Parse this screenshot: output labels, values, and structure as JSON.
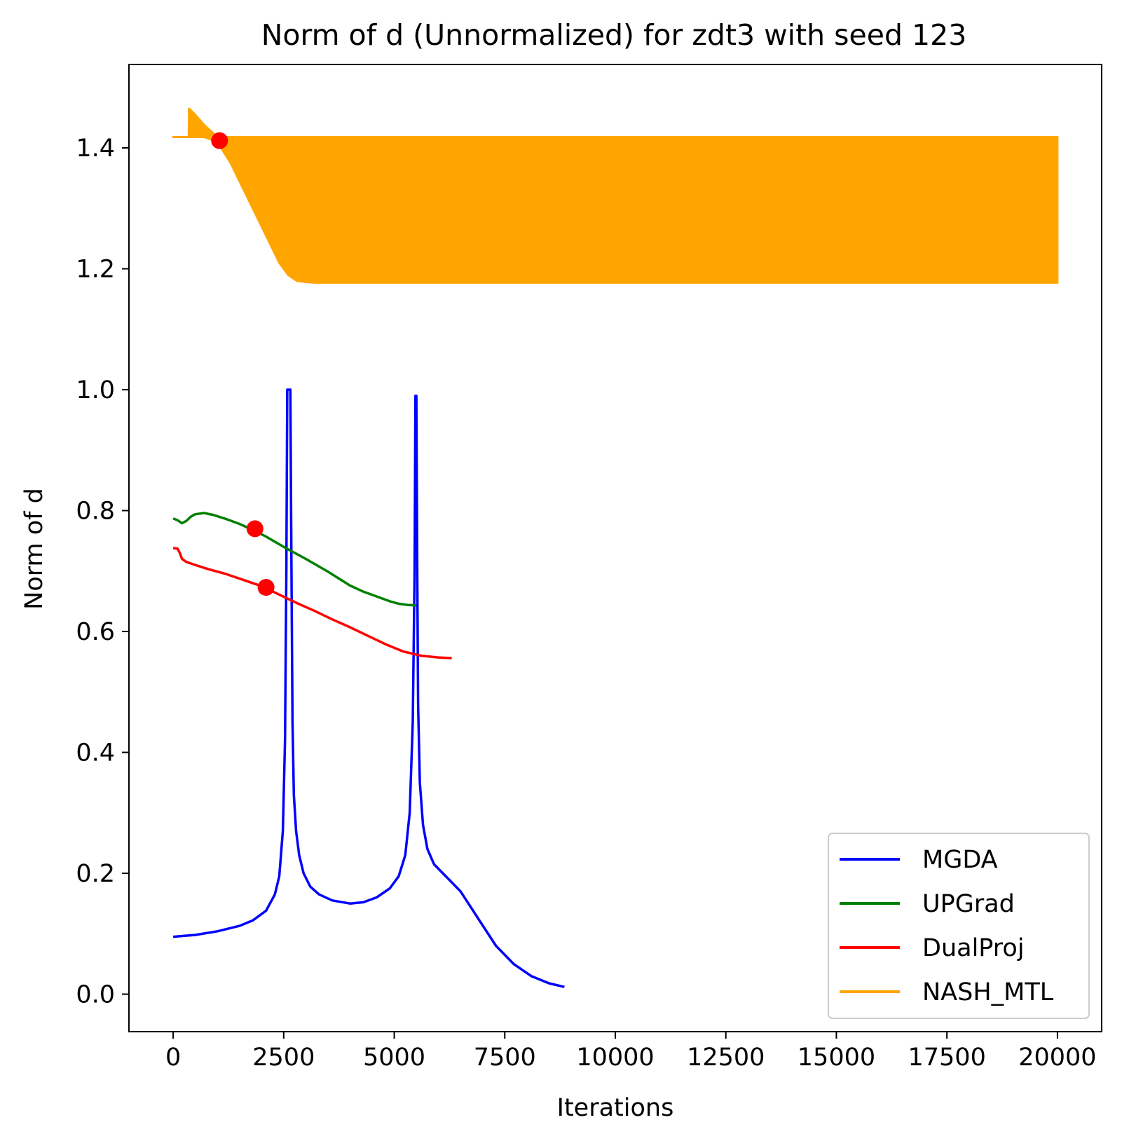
{
  "chart_data": {
    "type": "line",
    "title": "Norm of d (Unnormalized) for zdt3 with seed 123",
    "xlabel": "Iterations",
    "ylabel": "Norm of d",
    "xlim": [
      -1000,
      21000
    ],
    "ylim": [
      -0.062,
      1.538
    ],
    "xticks": [
      0,
      2500,
      5000,
      7500,
      10000,
      12500,
      15000,
      17500,
      20000
    ],
    "yticks": [
      0.0,
      0.2,
      0.4,
      0.6,
      0.8,
      1.0,
      1.2,
      1.4
    ],
    "xtick_labels": [
      "0",
      "2500",
      "5000",
      "7500",
      "10000",
      "12500",
      "15000",
      "17500",
      "20000"
    ],
    "ytick_labels": [
      "0.0",
      "0.2",
      "0.4",
      "0.6",
      "0.8",
      "1.0",
      "1.2",
      "1.4"
    ],
    "grid": false,
    "legend_position": "lower-right",
    "series": [
      {
        "name": "MGDA",
        "color": "#0000ff",
        "x": [
          0,
          500,
          1000,
          1500,
          1800,
          2100,
          2300,
          2400,
          2480,
          2530,
          2560,
          2580,
          2600,
          2620,
          2650,
          2680,
          2700,
          2730,
          2780,
          2850,
          2950,
          3100,
          3300,
          3600,
          4000,
          4300,
          4600,
          4900,
          5100,
          5250,
          5350,
          5420,
          5460,
          5480,
          5500,
          5520,
          5540,
          5580,
          5650,
          5750,
          5900,
          6100,
          6500,
          6900,
          7300,
          7700,
          8100,
          8500,
          8850
        ],
        "y": [
          0.095,
          0.098,
          0.104,
          0.113,
          0.122,
          0.138,
          0.165,
          0.195,
          0.27,
          0.42,
          0.7,
          1.0,
          1.0,
          1.0,
          1.0,
          0.65,
          0.45,
          0.33,
          0.27,
          0.23,
          0.2,
          0.178,
          0.165,
          0.155,
          0.15,
          0.152,
          0.16,
          0.175,
          0.195,
          0.23,
          0.3,
          0.45,
          0.7,
          0.99,
          0.99,
          0.7,
          0.48,
          0.35,
          0.28,
          0.24,
          0.215,
          0.2,
          0.17,
          0.125,
          0.08,
          0.05,
          0.03,
          0.018,
          0.012
        ]
      },
      {
        "name": "UPGrad",
        "color": "#008000",
        "x": [
          0,
          100,
          200,
          300,
          400,
          500,
          700,
          900,
          1200,
          1500,
          1800,
          2100,
          2500,
          3000,
          3500,
          4000,
          4300,
          4600,
          4900,
          5100,
          5300,
          5500
        ],
        "y": [
          0.787,
          0.784,
          0.779,
          0.783,
          0.79,
          0.794,
          0.796,
          0.793,
          0.786,
          0.778,
          0.768,
          0.757,
          0.74,
          0.72,
          0.699,
          0.676,
          0.666,
          0.658,
          0.65,
          0.646,
          0.644,
          0.643
        ]
      },
      {
        "name": "DualProj",
        "color": "#ff0000",
        "x": [
          0,
          100,
          150,
          200,
          300,
          500,
          800,
          1200,
          1600,
          2000,
          2400,
          2800,
          3200,
          3600,
          4000,
          4400,
          4800,
          5200,
          5600,
          6000,
          6300
        ],
        "y": [
          0.738,
          0.737,
          0.73,
          0.72,
          0.715,
          0.71,
          0.703,
          0.695,
          0.685,
          0.675,
          0.661,
          0.647,
          0.634,
          0.62,
          0.607,
          0.593,
          0.579,
          0.567,
          0.56,
          0.557,
          0.556
        ]
      },
      {
        "name": "NASH_MTL",
        "color": "#ffa500",
        "x": [
          0,
          350,
          360,
          500,
          700,
          1000,
          1300,
          1600,
          1900,
          2200,
          2400,
          2600,
          2800,
          3000,
          3200,
          20000
        ],
        "upper": [
          1.418,
          1.418,
          1.465,
          1.455,
          1.438,
          1.418,
          1.418,
          1.418,
          1.418,
          1.418,
          1.418,
          1.418,
          1.418,
          1.418,
          1.418,
          1.418
        ],
        "lower": [
          1.418,
          1.418,
          1.418,
          1.418,
          1.418,
          1.41,
          1.375,
          1.33,
          1.285,
          1.24,
          1.21,
          1.19,
          1.18,
          1.178,
          1.177,
          1.177
        ]
      }
    ],
    "markers": [
      {
        "series": "NASH_MTL",
        "x": 1050,
        "y": 1.412,
        "color": "#ff0000"
      },
      {
        "series": "UPGrad",
        "x": 1850,
        "y": 0.77,
        "color": "#ff0000"
      },
      {
        "series": "DualProj",
        "x": 2100,
        "y": 0.673,
        "color": "#ff0000"
      }
    ]
  }
}
